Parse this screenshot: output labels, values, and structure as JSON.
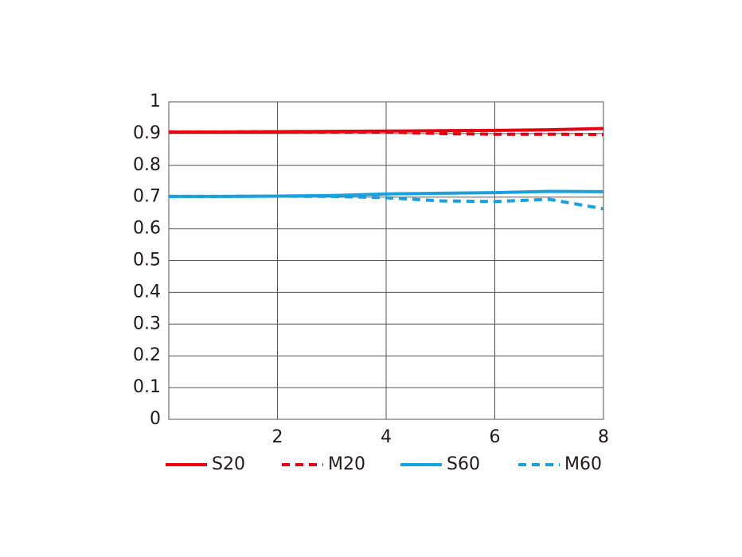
{
  "chart_data": {
    "type": "line",
    "x": [
      0,
      1,
      2,
      3,
      4,
      5,
      6,
      7,
      8
    ],
    "series": [
      {
        "name": "S20",
        "color": "#e60012",
        "style": "solid",
        "values": [
          0.905,
          0.905,
          0.906,
          0.907,
          0.908,
          0.909,
          0.91,
          0.912,
          0.916
        ]
      },
      {
        "name": "M20",
        "color": "#e60012",
        "style": "dashed",
        "values": [
          0.905,
          0.905,
          0.906,
          0.906,
          0.905,
          0.9,
          0.898,
          0.898,
          0.897
        ]
      },
      {
        "name": "S60",
        "color": "#1a9fdf",
        "style": "solid",
        "values": [
          0.702,
          0.702,
          0.703,
          0.705,
          0.71,
          0.712,
          0.714,
          0.718,
          0.717
        ]
      },
      {
        "name": "M60",
        "color": "#1a9fdf",
        "style": "dashed",
        "values": [
          0.702,
          0.702,
          0.703,
          0.702,
          0.698,
          0.688,
          0.686,
          0.693,
          0.663
        ]
      }
    ],
    "xlim": [
      0,
      8
    ],
    "xticks": [
      2,
      4,
      6,
      8
    ],
    "ylim": [
      0,
      1
    ],
    "yticks": [
      0,
      0.1,
      0.2,
      0.3,
      0.4,
      0.5,
      0.6,
      0.7,
      0.8,
      0.9,
      1
    ],
    "grid": true
  }
}
